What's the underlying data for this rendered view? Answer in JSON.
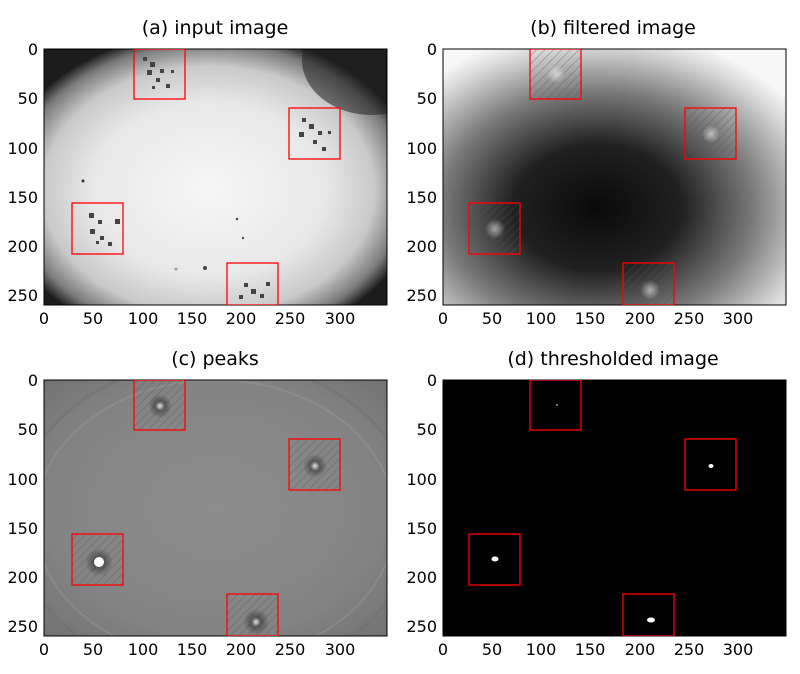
{
  "figure": {
    "panels": [
      {
        "id": "a",
        "title": "(a) input image",
        "x_ticks": [
          "0",
          "50",
          "100",
          "150",
          "200",
          "250",
          "300"
        ],
        "y_ticks": [
          "0",
          "50",
          "100",
          "150",
          "200",
          "250"
        ]
      },
      {
        "id": "b",
        "title": "(b) filtered image",
        "x_ticks": [
          "0",
          "50",
          "100",
          "150",
          "200",
          "250",
          "300"
        ],
        "y_ticks": [
          "0",
          "50",
          "100",
          "150",
          "200",
          "250"
        ]
      },
      {
        "id": "c",
        "title": "(c) peaks",
        "x_ticks": [
          "0",
          "50",
          "100",
          "150",
          "200",
          "250",
          "300"
        ],
        "y_ticks": [
          "0",
          "50",
          "100",
          "150",
          "200",
          "250"
        ]
      },
      {
        "id": "d",
        "title": "(d) thresholded image",
        "x_ticks": [
          "0",
          "50",
          "100",
          "150",
          "200",
          "250",
          "300"
        ],
        "y_ticks": [
          "0",
          "50",
          "100",
          "150",
          "200",
          "250"
        ]
      }
    ],
    "image_extent": {
      "x": [
        0,
        348
      ],
      "y": [
        0,
        260
      ]
    },
    "boxes_data_units": [
      {
        "x0": 91,
        "y0": 0,
        "x1": 143,
        "y1": 51
      },
      {
        "x0": 248,
        "y0": 60,
        "x1": 300,
        "y1": 112
      },
      {
        "x0": 28,
        "y0": 157,
        "x1": 80,
        "y1": 209
      },
      {
        "x0": 185,
        "y0": 218,
        "x1": 237,
        "y1": 260
      }
    ],
    "box_color": "#ff0000"
  }
}
